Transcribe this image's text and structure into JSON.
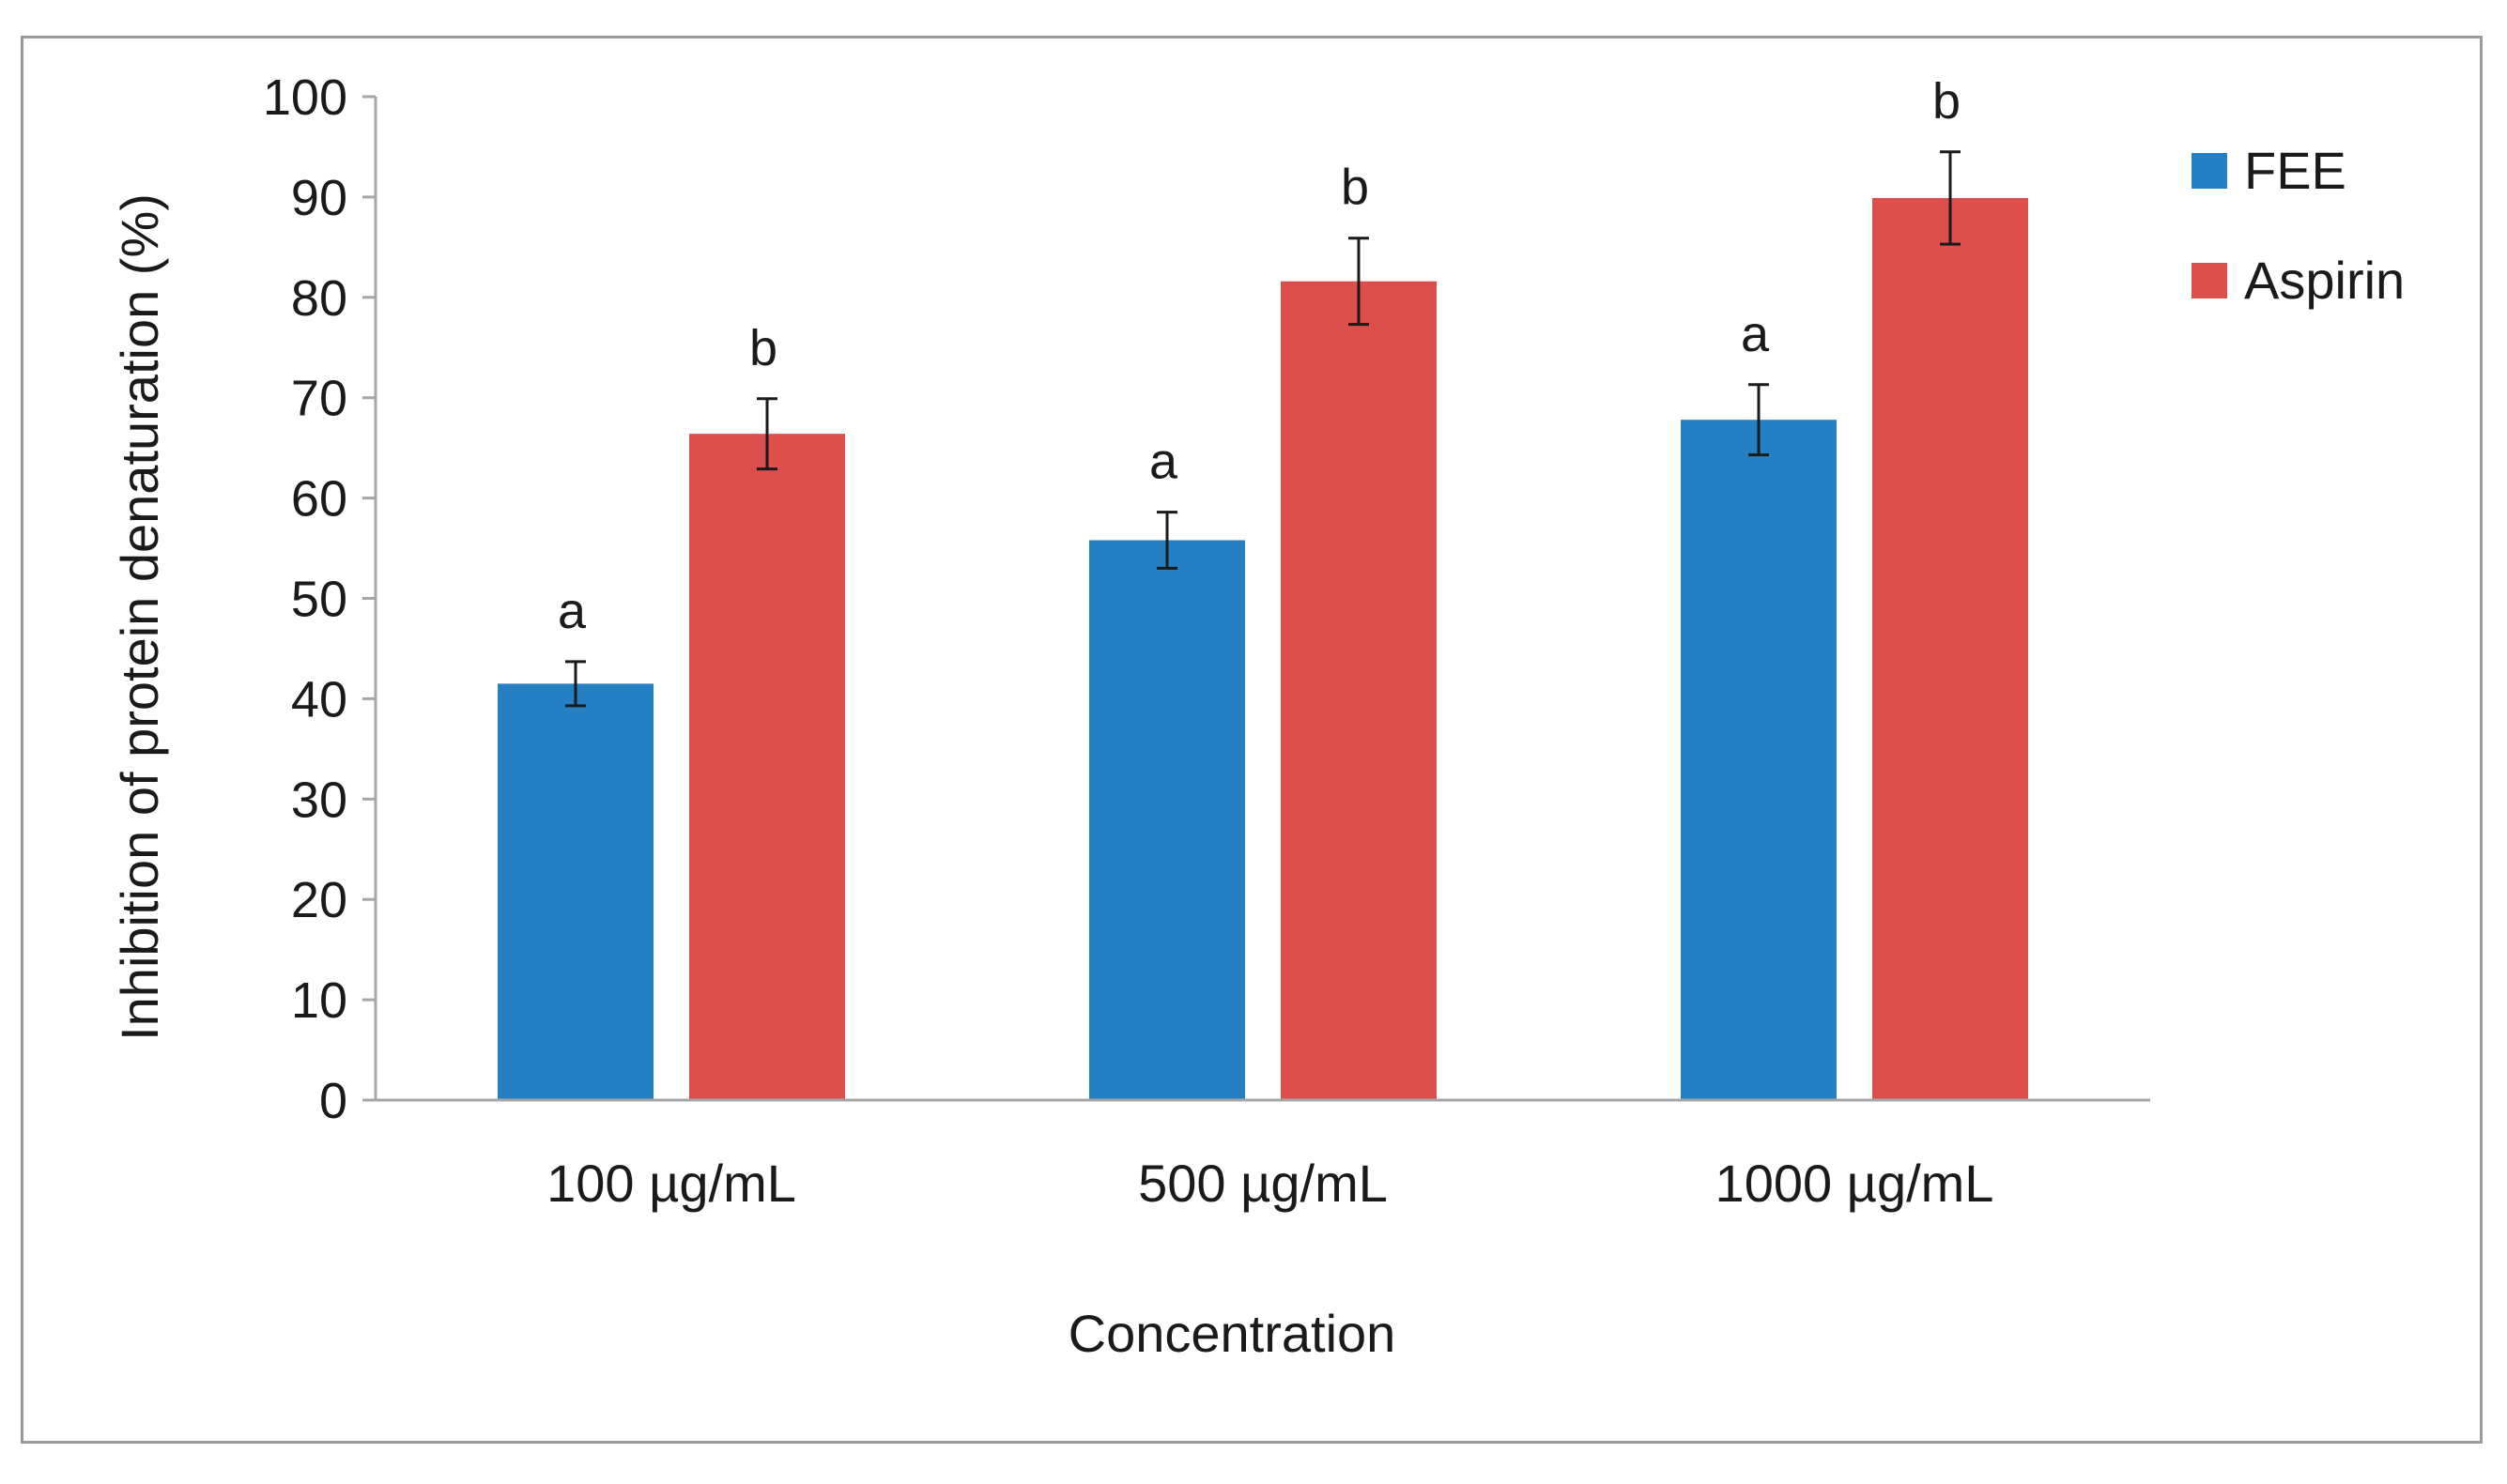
{
  "chart_data": {
    "type": "bar",
    "title": "",
    "xlabel": "Concentration",
    "ylabel": "Inhibition of protein denaturation (%)",
    "ylim": [
      0,
      100
    ],
    "yticks": [
      0,
      10,
      20,
      30,
      40,
      50,
      60,
      70,
      80,
      90,
      100
    ],
    "categories": [
      "100 µg/mL",
      "500 µg/mL",
      "1000 µg/mL"
    ],
    "legend_position": "right",
    "grid": false,
    "series": [
      {
        "name": "FEE",
        "color": "#2580c3",
        "values": [
          41.5,
          55.8,
          67.8
        ],
        "errors": [
          2.2,
          2.8,
          3.5
        ],
        "labels": [
          "a",
          "a",
          "a"
        ]
      },
      {
        "name": "Aspirin",
        "color": "#dc4f4d",
        "values": [
          66.4,
          81.6,
          89.9
        ],
        "errors": [
          3.5,
          4.3,
          4.6
        ],
        "labels": [
          "b",
          "b",
          "b"
        ]
      }
    ]
  }
}
